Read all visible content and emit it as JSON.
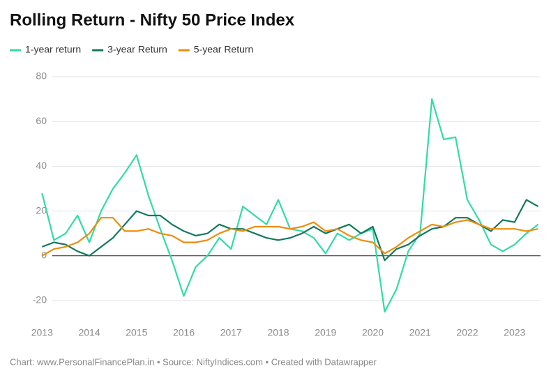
{
  "chart_data": {
    "type": "line",
    "title": "Rolling Return - Nifty 50 Price Index",
    "footer": "Chart: www.PersonalFinancePlan.in • Source: NiftyIndices.com • Created with Datawrapper",
    "x": [
      2013,
      2013.25,
      2013.5,
      2013.75,
      2014,
      2014.25,
      2014.5,
      2014.75,
      2015,
      2015.25,
      2015.5,
      2015.75,
      2016,
      2016.25,
      2016.5,
      2016.75,
      2017,
      2017.25,
      2017.5,
      2017.75,
      2018,
      2018.25,
      2018.5,
      2018.75,
      2019,
      2019.25,
      2019.5,
      2019.75,
      2020,
      2020.25,
      2020.5,
      2020.75,
      2021,
      2021.25,
      2021.5,
      2021.75,
      2022,
      2022.25,
      2022.5,
      2022.75,
      2023,
      2023.25,
      2023.5
    ],
    "series": [
      {
        "name": "1-year return",
        "color": "#31dba6",
        "values": [
          28,
          7,
          10,
          18,
          6,
          20,
          30,
          37,
          45,
          27,
          12,
          -2,
          -18,
          -5,
          0,
          8,
          3,
          22,
          18,
          14,
          25,
          12,
          11,
          8,
          1,
          10,
          7,
          10,
          12,
          -25,
          -15,
          2,
          10,
          70,
          52,
          53,
          25,
          16,
          5,
          2,
          5,
          10,
          14
        ]
      },
      {
        "name": "3-year Return",
        "color": "#13785c",
        "values": [
          4,
          6,
          5,
          2,
          0,
          4,
          8,
          14,
          20,
          18,
          18,
          14,
          11,
          9,
          10,
          14,
          12,
          12,
          10,
          8,
          7,
          8,
          10,
          13,
          10,
          12,
          14,
          10,
          13,
          -2,
          3,
          5,
          9,
          12,
          13,
          17,
          17,
          14,
          11,
          16,
          15,
          25,
          22
        ]
      },
      {
        "name": "5-year Return",
        "color": "#ef8c0c",
        "values": [
          0,
          3,
          4,
          6,
          10,
          17,
          17,
          11,
          11,
          12,
          10,
          9,
          6,
          6,
          7,
          10,
          12,
          11,
          13,
          13,
          13,
          12,
          13,
          15,
          11,
          12,
          9,
          7,
          6,
          1,
          4,
          8,
          11,
          14,
          13,
          15,
          16,
          14,
          12,
          12,
          12,
          11,
          12
        ]
      }
    ],
    "xlim": [
      2012.7,
      2023.55
    ],
    "xticks": [
      2013,
      2014,
      2015,
      2016,
      2017,
      2018,
      2019,
      2020,
      2021,
      2022,
      2023
    ],
    "ylim": [
      -30,
      85
    ],
    "yticks": [
      -20,
      0,
      20,
      40,
      60,
      80
    ],
    "grid": true
  }
}
